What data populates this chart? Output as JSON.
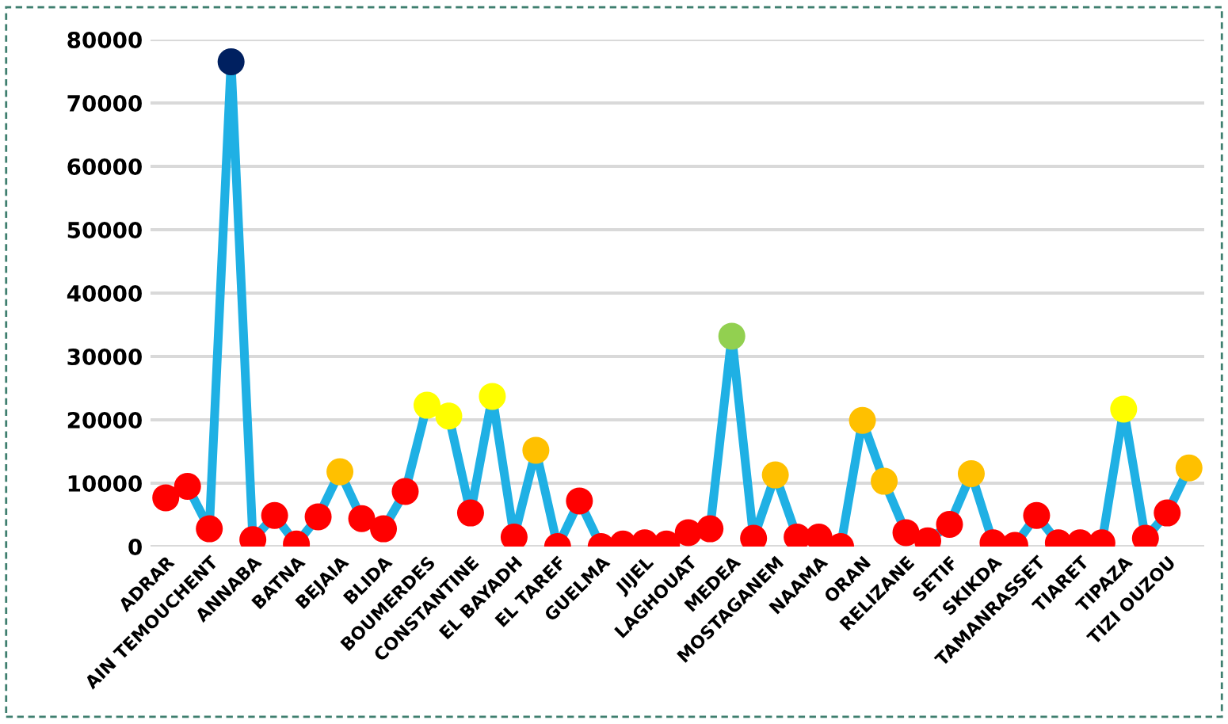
{
  "chart_data": {
    "type": "line",
    "categories": [
      "ADRAR",
      null,
      "AIN TEMOUCHENT",
      null,
      "ANNABA",
      null,
      "BATNA",
      null,
      "BEJAIA",
      null,
      "BLIDA",
      null,
      "BOUMERDES",
      null,
      "CONSTANTINE",
      null,
      "EL BAYADH",
      null,
      "EL TAREF",
      null,
      "GUELMA",
      null,
      "JIJEL",
      null,
      "LAGHOUAT",
      null,
      "MEDEA",
      null,
      "MOSTAGANEM",
      null,
      "NAAMA",
      null,
      "ORAN",
      null,
      "RELIZANE",
      null,
      "SETIF",
      null,
      "SKIKDA",
      null,
      "TAMANRASSET",
      null,
      "TIARET",
      null,
      "TIPAZA",
      null,
      "TIZI OUZOU",
      null
    ],
    "series": [
      {
        "color": "#1fb0e4",
        "values": [
          7700,
          9500,
          2800,
          76500,
          1100,
          4900,
          400,
          4700,
          11800,
          4400,
          2800,
          8700,
          22300,
          20600,
          5300,
          23700,
          1500,
          15200,
          0,
          7200,
          0,
          400,
          600,
          400,
          2200,
          2800,
          33200,
          1300,
          11300,
          1500,
          1500,
          0,
          19900,
          10300,
          2200,
          900,
          3500,
          11500,
          600,
          200,
          4900,
          600,
          600,
          600,
          21700,
          1300,
          5300,
          12400
        ],
        "colors": [
          "#ff0000",
          "#ff0000",
          "#ff0000",
          "#002060",
          "#ff0000",
          "#ff0000",
          "#ff0000",
          "#ff0000",
          "#ffc000",
          "#ff0000",
          "#ff0000",
          "#ff0000",
          "#ffff00",
          "#ffff00",
          "#ff0000",
          "#ffff00",
          "#ff0000",
          "#ffc000",
          "#ff0000",
          "#ff0000",
          "#ff0000",
          "#ff0000",
          "#ff0000",
          "#ff0000",
          "#ff0000",
          "#ff0000",
          "#92d050",
          "#ff0000",
          "#ffc000",
          "#ff0000",
          "#ff0000",
          "#ff0000",
          "#ffc000",
          "#ffc000",
          "#ff0000",
          "#ff0000",
          "#ff0000",
          "#ffc000",
          "#ff0000",
          "#ff0000",
          "#ff0000",
          "#ff0000",
          "#ff0000",
          "#ff0000",
          "#ffff00",
          "#ff0000",
          "#ff0000",
          "#ffc000"
        ]
      }
    ],
    "ylim": [
      0,
      80000
    ],
    "yticks": [
      0,
      10000,
      20000,
      30000,
      40000,
      50000,
      60000,
      70000,
      80000
    ],
    "grid": "y",
    "marker": "circle",
    "line_style": "solid"
  }
}
